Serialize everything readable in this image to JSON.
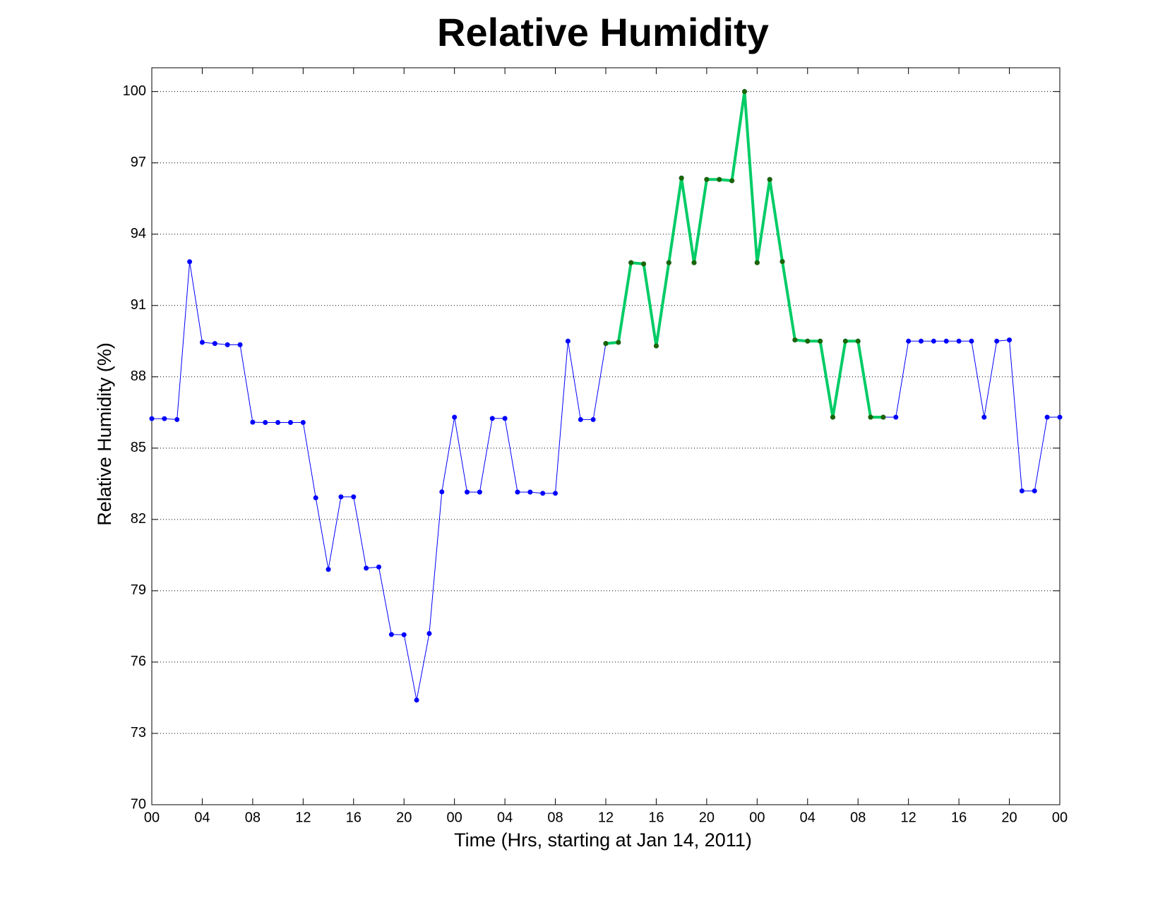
{
  "chart_data": {
    "type": "line",
    "title": "Relative Humidity",
    "xlabel": "Time (Hrs, starting at Jan 14, 2011)",
    "ylabel": "Relative Humidity (%)",
    "x": [
      0,
      1,
      2,
      3,
      4,
      5,
      6,
      7,
      8,
      9,
      10,
      11,
      12,
      13,
      14,
      15,
      16,
      17,
      18,
      19,
      20,
      21,
      22,
      23,
      24,
      25,
      26,
      27,
      28,
      29,
      30,
      31,
      32,
      33,
      34,
      35,
      36,
      37,
      38,
      39,
      40,
      41,
      42,
      43,
      44,
      45,
      46,
      47,
      48,
      49,
      50,
      51,
      52,
      53,
      54,
      55,
      56,
      57,
      58,
      59,
      60,
      61,
      62,
      63,
      64,
      65,
      66,
      67,
      68,
      69,
      70,
      71,
      72
    ],
    "series": [
      {
        "color": "#0000ff",
        "marker_color": "#0000ff",
        "line_width": 1,
        "values": [
          86.24,
          86.24,
          86.2,
          92.84,
          89.45,
          89.4,
          89.35,
          89.35,
          86.09,
          86.08,
          86.08,
          86.08,
          86.08,
          82.91,
          79.9,
          82.95,
          82.95,
          79.95,
          80.0,
          77.16,
          77.15,
          74.4,
          77.2,
          83.16,
          86.3,
          83.15,
          83.15,
          86.25,
          86.25,
          83.15,
          83.15,
          83.1,
          83.1,
          89.5,
          86.2,
          86.2,
          89.4,
          89.45,
          92.8,
          92.75,
          89.3,
          92.8,
          96.36,
          92.8,
          96.3,
          96.3,
          96.25,
          100,
          92.8,
          96.3,
          92.85,
          89.55,
          89.5,
          89.5,
          86.3,
          89.5,
          89.5,
          86.3,
          86.3,
          86.3,
          89.5,
          89.5,
          89.5,
          89.5,
          89.5,
          89.5,
          86.3,
          89.5,
          89.55,
          83.2,
          83.2,
          86.3,
          86.3
        ]
      },
      {
        "color": "#00cc66",
        "marker_color": "#1a6600",
        "line_width": 4,
        "values": [
          null,
          null,
          null,
          null,
          null,
          null,
          null,
          null,
          null,
          null,
          null,
          null,
          null,
          null,
          null,
          null,
          null,
          null,
          null,
          null,
          null,
          null,
          null,
          null,
          null,
          null,
          null,
          null,
          null,
          null,
          null,
          null,
          null,
          null,
          null,
          null,
          89.4,
          89.45,
          92.8,
          92.75,
          89.3,
          92.8,
          96.36,
          92.8,
          96.3,
          96.3,
          96.25,
          100,
          92.8,
          96.3,
          92.85,
          89.55,
          89.5,
          89.5,
          86.3,
          89.5,
          89.5,
          86.3,
          86.3,
          null,
          null,
          null,
          null,
          null,
          null,
          null,
          null,
          null,
          null,
          null,
          null,
          null,
          null
        ]
      }
    ],
    "xlim": [
      0,
      72
    ],
    "xticks": [
      {
        "value": 0,
        "label": "00"
      },
      {
        "value": 4,
        "label": "04"
      },
      {
        "value": 8,
        "label": "08"
      },
      {
        "value": 12,
        "label": "12"
      },
      {
        "value": 16,
        "label": "16"
      },
      {
        "value": 20,
        "label": "20"
      },
      {
        "value": 24,
        "label": "00"
      },
      {
        "value": 28,
        "label": "04"
      },
      {
        "value": 32,
        "label": "08"
      },
      {
        "value": 36,
        "label": "12"
      },
      {
        "value": 40,
        "label": "16"
      },
      {
        "value": 44,
        "label": "20"
      },
      {
        "value": 48,
        "label": "00"
      },
      {
        "value": 52,
        "label": "04"
      },
      {
        "value": 56,
        "label": "08"
      },
      {
        "value": 60,
        "label": "12"
      },
      {
        "value": 64,
        "label": "16"
      },
      {
        "value": 68,
        "label": "20"
      },
      {
        "value": 72,
        "label": "00"
      }
    ],
    "ylim": [
      70,
      101
    ],
    "yticks": [
      70,
      73,
      76,
      79,
      82,
      85,
      88,
      91,
      94,
      97,
      100
    ],
    "grid": true
  }
}
